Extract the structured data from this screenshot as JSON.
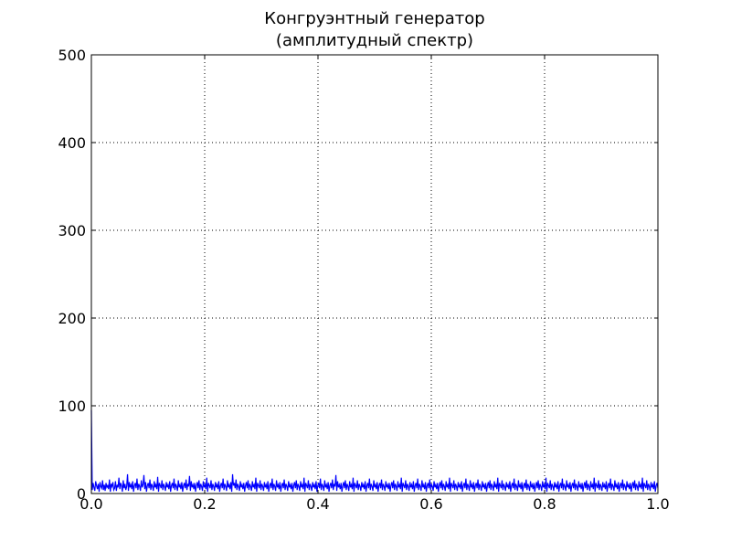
{
  "chart_data": {
    "type": "line",
    "title": "Конгруэнтный генератор",
    "subtitle": "(амплитудный спектр)",
    "xlabel": "",
    "ylabel": "",
    "xlim": [
      0.0,
      1.0
    ],
    "ylim": [
      0,
      500
    ],
    "x_ticks": [
      "0.0",
      "0.2",
      "0.4",
      "0.6",
      "0.8",
      "1.0"
    ],
    "y_ticks": [
      "0",
      "100",
      "200",
      "300",
      "400",
      "500"
    ],
    "grid": true,
    "grid_style": "dotted",
    "series": [
      {
        "color": "#0000ff",
        "note_peak": {
          "x": 0.0,
          "y": 95
        },
        "x_start": 0.0,
        "x_end": 1.0,
        "typical_range": [
          0,
          24
        ],
        "values": [
          95,
          4,
          12,
          7,
          3,
          14,
          9,
          5,
          11,
          2,
          13,
          8,
          6,
          15,
          4,
          10,
          3,
          12,
          7,
          9,
          5,
          16,
          2,
          11,
          8,
          13,
          4,
          6,
          14,
          3,
          10,
          7,
          18,
          5,
          12,
          9,
          2,
          15,
          6,
          11,
          4,
          8,
          22,
          3,
          13,
          7,
          10,
          5,
          14,
          2,
          9,
          12,
          6,
          17,
          4,
          11,
          8,
          3,
          15,
          7,
          10,
          21,
          5,
          13,
          2,
          9,
          12,
          6,
          16,
          4,
          11,
          8,
          3,
          14,
          7,
          10,
          5,
          19,
          2,
          12,
          9,
          6,
          15,
          4,
          11,
          8,
          3,
          13,
          7,
          10,
          5,
          14,
          2,
          9,
          12,
          6,
          17,
          4,
          11,
          8,
          3,
          15,
          7,
          10,
          5,
          13,
          2,
          9,
          12,
          6,
          16,
          4,
          11,
          8,
          20,
          3,
          14,
          7,
          10,
          5,
          12,
          2,
          9,
          13,
          6,
          15,
          4,
          11,
          8,
          3,
          14,
          7,
          10,
          5,
          18,
          2,
          12,
          9,
          6,
          15,
          4,
          11,
          8,
          3,
          13,
          7,
          10,
          5,
          14,
          2,
          9,
          12,
          6,
          17,
          4,
          11,
          8,
          3,
          15,
          7,
          10,
          5,
          13,
          2,
          22,
          9,
          12,
          6,
          16,
          4,
          11,
          8,
          3,
          14,
          7,
          10,
          5,
          12,
          2,
          9,
          13,
          6,
          15,
          4,
          11,
          8,
          3,
          14,
          7,
          10,
          5,
          18,
          2,
          12,
          9,
          6,
          15,
          4,
          11,
          8,
          3,
          13,
          7,
          10,
          5,
          14,
          2,
          9,
          12,
          6,
          17,
          4,
          11,
          8,
          3,
          15,
          7,
          10,
          5,
          13,
          2,
          9,
          12,
          6,
          16,
          4,
          11,
          8,
          3,
          14,
          7,
          10,
          5,
          12,
          2,
          9,
          13,
          6,
          15,
          4,
          11,
          8,
          3,
          14,
          7,
          10,
          5,
          18,
          2,
          12,
          9,
          6,
          15,
          4,
          11,
          8,
          3,
          13,
          7,
          10,
          5,
          14,
          2,
          9,
          12,
          6,
          17,
          4,
          11,
          8,
          3,
          15,
          7,
          10,
          5,
          13,
          2,
          9,
          12,
          6,
          16,
          4,
          11,
          8,
          21,
          3,
          14,
          7,
          10,
          5,
          12,
          2,
          9,
          13,
          6,
          15,
          4,
          11,
          8,
          3,
          14,
          7,
          10,
          5,
          18,
          2,
          12,
          9,
          6,
          15,
          4,
          11,
          8,
          3,
          13,
          7,
          10,
          5,
          14,
          2,
          9,
          12,
          6,
          17,
          4,
          11,
          8,
          3,
          15,
          7,
          10,
          5,
          13,
          2,
          9,
          12,
          6,
          16,
          4,
          11,
          8,
          3,
          14,
          7,
          10,
          5,
          12,
          2,
          9,
          13,
          6,
          15,
          4,
          11,
          8,
          3,
          14,
          7,
          10,
          5,
          18,
          2,
          12,
          9,
          6,
          15,
          4,
          11,
          8,
          3,
          13,
          7,
          10,
          5,
          14,
          2,
          9,
          12,
          6,
          17,
          4,
          11,
          8,
          3,
          15,
          7,
          10,
          5,
          13,
          2,
          9,
          12,
          6,
          16,
          4,
          11,
          8,
          3,
          14,
          7,
          10,
          5,
          12,
          2,
          9,
          13,
          6,
          15,
          4,
          11,
          8,
          3,
          14,
          7,
          10,
          5,
          18,
          2,
          12,
          9,
          6,
          15,
          4,
          11,
          8,
          3,
          13,
          7,
          10,
          5,
          14,
          2,
          9,
          12,
          6,
          17,
          4,
          11,
          8,
          3,
          15,
          7,
          10,
          5,
          13,
          2,
          9,
          12,
          6,
          16,
          4,
          11,
          8,
          3,
          14,
          7,
          10,
          5,
          12,
          2,
          9,
          13,
          6,
          15,
          4,
          11,
          8,
          3,
          14,
          7,
          10,
          5,
          18,
          2,
          12,
          9,
          6,
          15,
          4,
          11,
          8,
          3,
          13,
          7,
          10,
          5,
          14,
          2,
          9,
          12,
          6,
          17,
          4,
          11,
          8,
          3,
          15,
          7,
          10,
          5,
          13,
          2,
          9,
          12,
          6,
          16,
          4,
          11,
          8,
          3,
          14,
          7,
          10,
          5,
          12,
          2,
          9,
          13,
          6,
          15,
          4,
          11,
          8,
          3,
          14,
          7,
          10,
          5,
          18,
          2,
          12,
          9,
          6,
          15,
          4,
          11,
          8,
          3,
          13,
          7,
          10,
          5,
          14,
          2,
          9,
          12,
          6,
          17,
          4,
          11,
          8,
          3,
          15,
          7,
          10,
          5,
          13,
          2,
          9,
          12,
          6,
          16,
          4,
          11,
          8,
          3,
          14,
          7,
          10,
          5,
          12,
          2,
          9,
          13,
          6,
          15,
          4,
          11,
          8,
          3,
          14,
          7,
          10,
          5,
          18,
          2,
          12,
          9,
          6,
          15,
          4,
          11,
          8,
          3,
          13,
          7,
          10,
          5,
          14,
          2,
          9,
          12,
          6,
          17,
          4,
          11,
          8,
          3,
          15,
          7,
          10,
          5,
          13,
          2,
          9,
          12,
          6,
          16,
          4,
          11,
          8,
          3,
          14,
          7,
          10,
          5,
          12,
          2,
          9,
          13,
          6,
          15,
          4,
          11,
          8,
          3,
          14,
          7,
          10,
          5,
          18,
          2,
          12,
          9,
          6,
          15,
          4,
          11,
          8,
          3,
          13,
          7,
          10,
          5,
          14,
          2,
          9,
          12,
          6
        ]
      }
    ]
  },
  "colors": {
    "background": "#ffffff",
    "axes_frame": "#000000",
    "grid": "#000000",
    "line": "#0000ff"
  }
}
